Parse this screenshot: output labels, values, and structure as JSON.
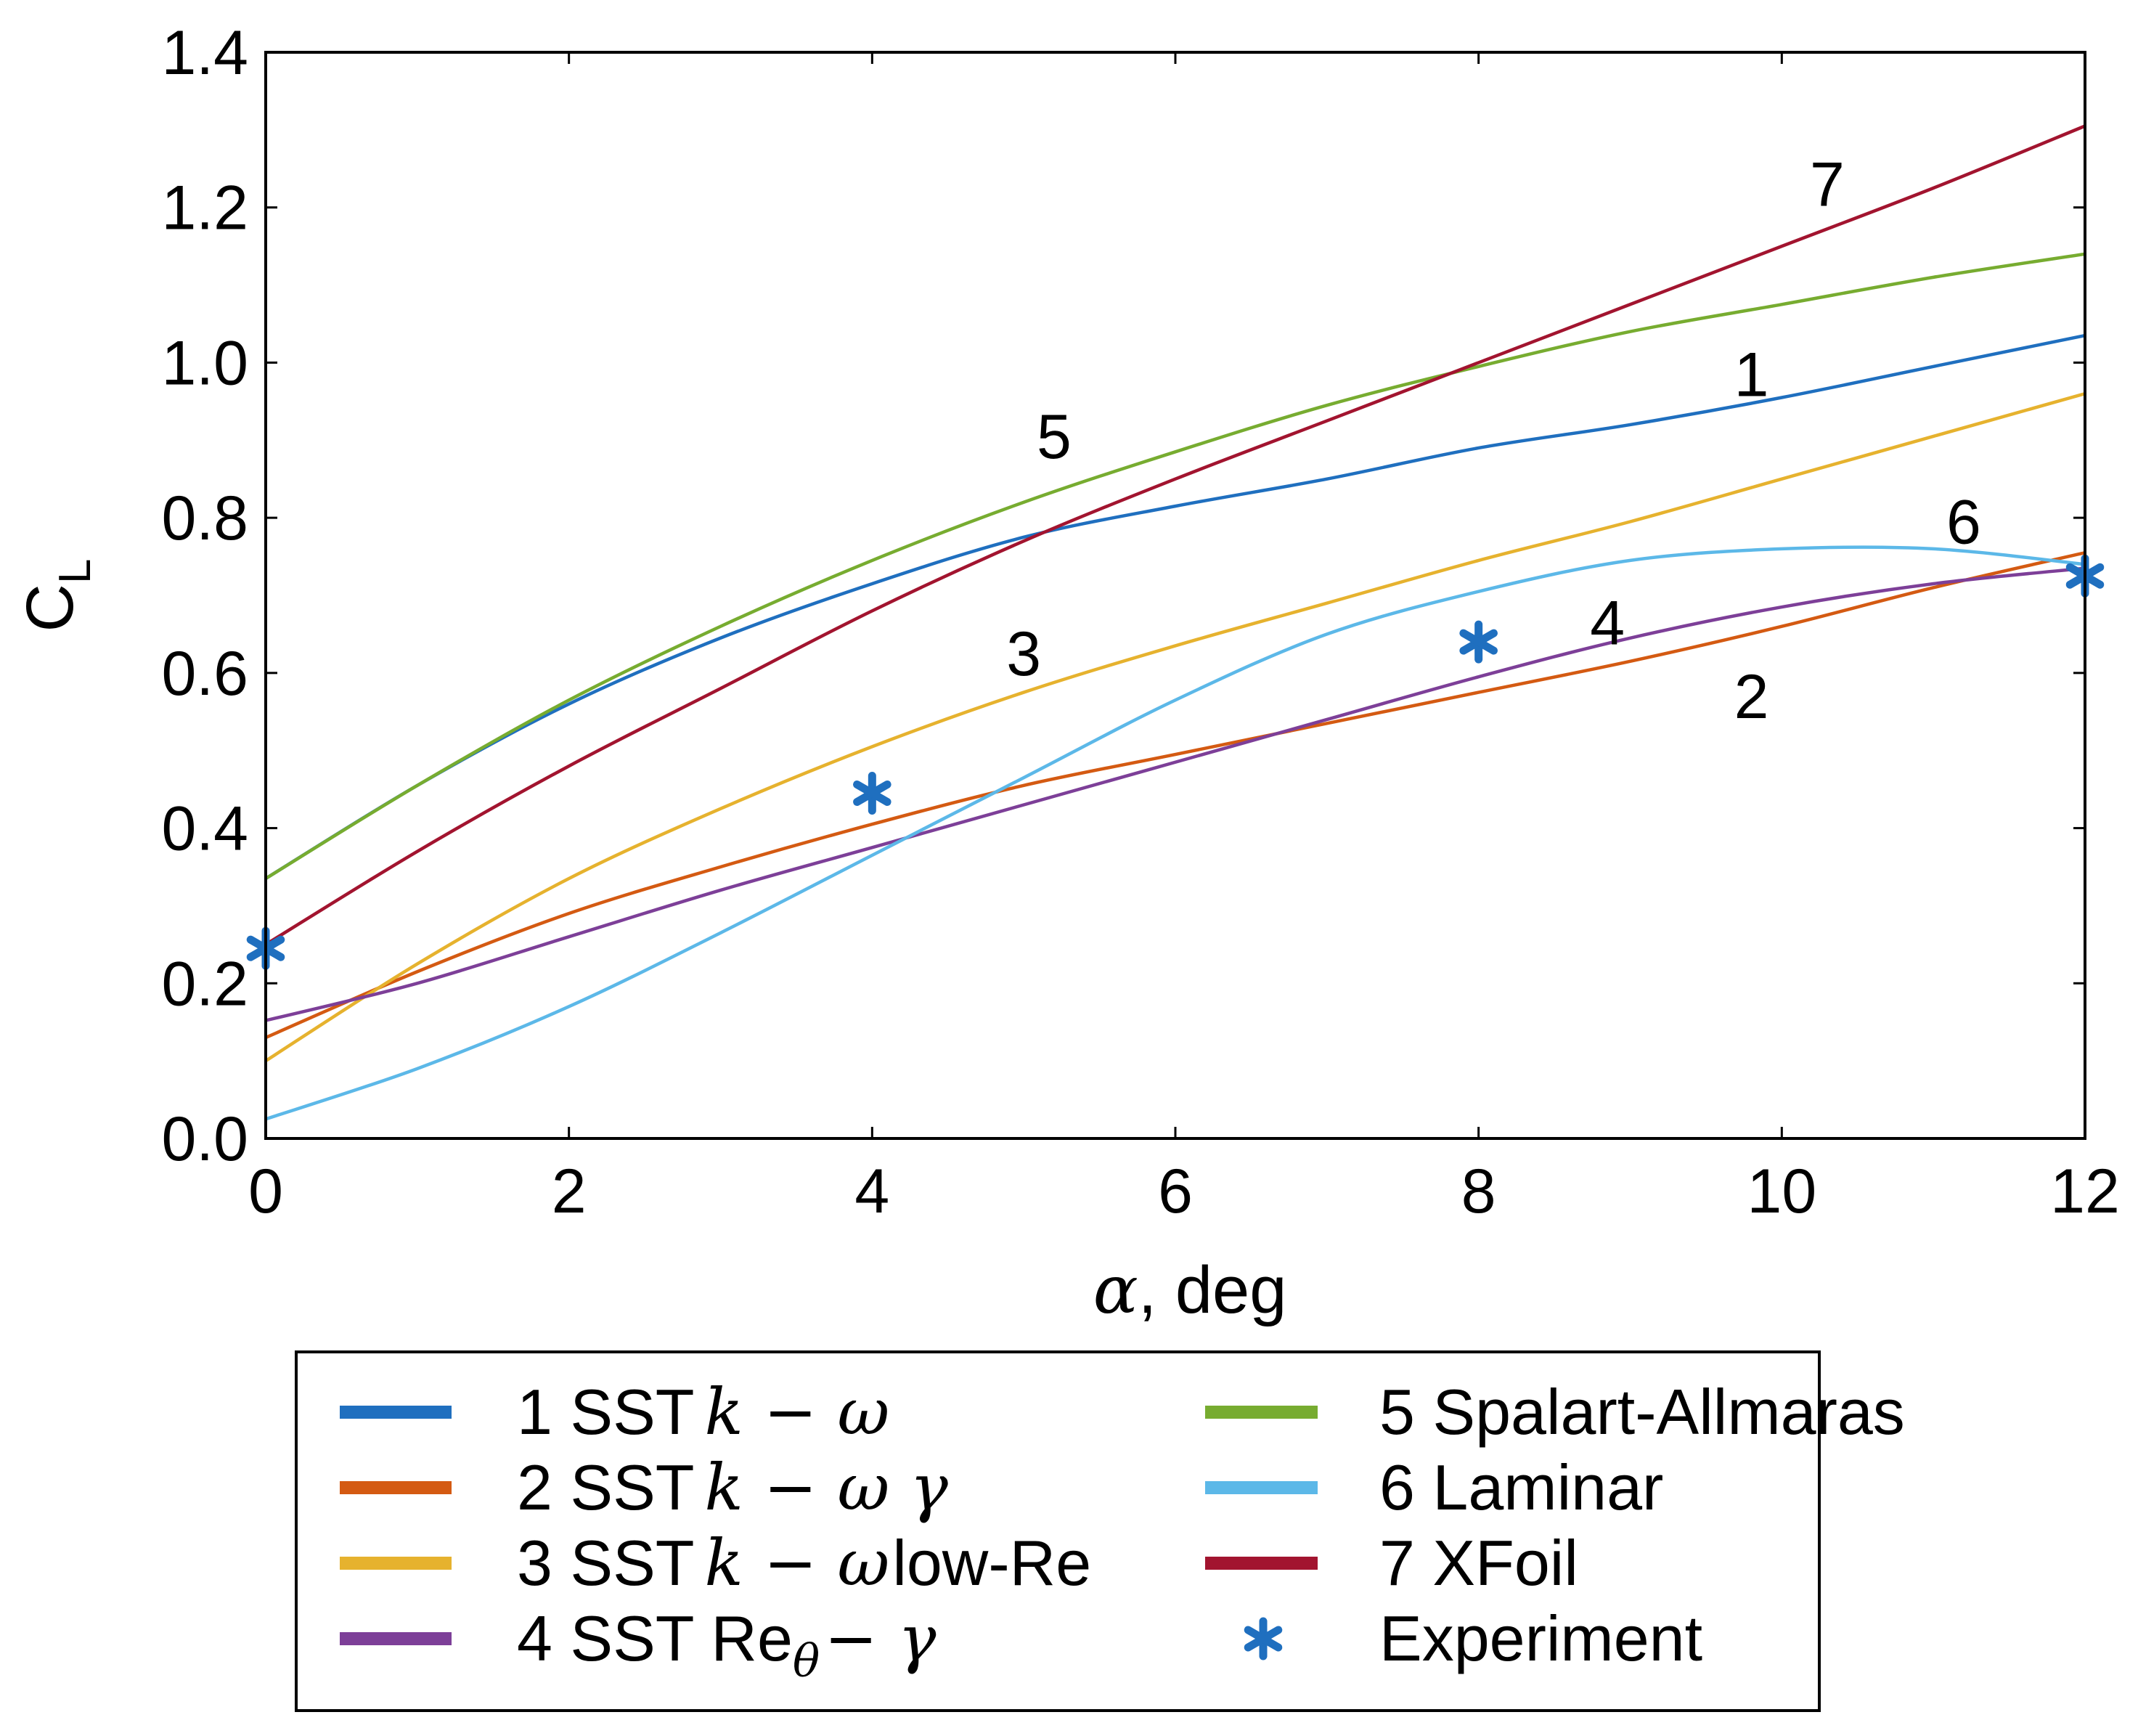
{
  "chart_data": {
    "type": "line",
    "title": "",
    "xlabel": "α, deg",
    "ylabel": "C",
    "ylabel_sub": "L",
    "xlim": [
      0,
      12
    ],
    "ylim": [
      0,
      1.4
    ],
    "xticks": [
      0,
      2,
      4,
      6,
      8,
      10,
      12
    ],
    "yticks": [
      0.0,
      0.2,
      0.4,
      0.6,
      0.8,
      1.0,
      1.2,
      1.4
    ],
    "xtick_labels": [
      "0",
      "2",
      "4",
      "6",
      "8",
      "10",
      "12"
    ],
    "ytick_labels": [
      "0.0",
      "0.2",
      "0.4",
      "0.6",
      "0.8",
      "1.0",
      "1.2",
      "1.4"
    ],
    "grid": false,
    "series": [
      {
        "id": "1",
        "name": "1 SST k − ω",
        "color": "#1f6fbf",
        "x": [
          0,
          1,
          2,
          3,
          4,
          5,
          6,
          7,
          8,
          9,
          10,
          11,
          12
        ],
        "y": [
          0.335,
          0.455,
          0.56,
          0.645,
          0.715,
          0.775,
          0.815,
          0.85,
          0.89,
          0.92,
          0.955,
          0.995,
          1.035
        ]
      },
      {
        "id": "2",
        "name": "2 SST k − ω γ",
        "color": "#d45a12",
        "x": [
          0,
          1,
          2,
          3,
          4,
          5,
          6,
          7,
          8,
          9,
          10,
          11,
          12
        ],
        "y": [
          0.13,
          0.215,
          0.29,
          0.35,
          0.405,
          0.455,
          0.495,
          0.535,
          0.575,
          0.615,
          0.66,
          0.71,
          0.755
        ]
      },
      {
        "id": "3",
        "name": "3 SST k − ω low-Re",
        "color": "#e6b22e",
        "x": [
          0,
          1,
          2,
          3,
          4,
          5,
          6,
          7,
          8,
          9,
          10,
          11,
          12
        ],
        "y": [
          0.1,
          0.225,
          0.335,
          0.425,
          0.505,
          0.575,
          0.635,
          0.69,
          0.745,
          0.795,
          0.85,
          0.905,
          0.96
        ]
      },
      {
        "id": "4",
        "name": "4 SST Reθ− γ",
        "color": "#7d3f98",
        "x": [
          0,
          1,
          2,
          3,
          4,
          5,
          6,
          7,
          8,
          9,
          10,
          11,
          12
        ],
        "y": [
          0.152,
          0.2,
          0.26,
          0.32,
          0.375,
          0.43,
          0.485,
          0.54,
          0.595,
          0.645,
          0.685,
          0.715,
          0.735
        ]
      },
      {
        "id": "5",
        "name": "5 Spalart-Allmaras",
        "color": "#77ac30",
        "x": [
          0,
          1,
          2,
          3,
          4,
          5,
          6,
          7,
          8,
          9,
          10,
          11,
          12
        ],
        "y": [
          0.335,
          0.455,
          0.565,
          0.66,
          0.745,
          0.82,
          0.885,
          0.945,
          0.995,
          1.04,
          1.075,
          1.11,
          1.14
        ]
      },
      {
        "id": "6",
        "name": "6 Laminar",
        "color": "#5cb8e8",
        "x": [
          0,
          1,
          2,
          3,
          4,
          5,
          6,
          7,
          8,
          9,
          10,
          11,
          12
        ],
        "y": [
          0.025,
          0.09,
          0.17,
          0.265,
          0.365,
          0.465,
          0.565,
          0.65,
          0.705,
          0.745,
          0.76,
          0.76,
          0.74
        ]
      },
      {
        "id": "7",
        "name": "7 XFoil",
        "color": "#a2142f",
        "x": [
          0,
          1,
          2,
          3,
          4,
          5,
          6,
          7,
          8,
          9,
          10,
          11,
          12
        ],
        "y": [
          0.25,
          0.37,
          0.48,
          0.58,
          0.68,
          0.77,
          0.85,
          0.925,
          1.0,
          1.075,
          1.15,
          1.225,
          1.305
        ]
      }
    ],
    "experiment": {
      "name": "Experiment",
      "marker": "*",
      "color": "#1f6fbf",
      "x": [
        0,
        4,
        8,
        12
      ],
      "y": [
        0.245,
        0.445,
        0.64,
        0.725
      ]
    },
    "curve_labels": [
      {
        "text": "7",
        "x": 10.3,
        "y": 1.23
      },
      {
        "text": "1",
        "x": 9.8,
        "y": 0.985
      },
      {
        "text": "5",
        "x": 5.2,
        "y": 0.905
      },
      {
        "text": "6",
        "x": 11.2,
        "y": 0.795
      },
      {
        "text": "3",
        "x": 5.0,
        "y": 0.625
      },
      {
        "text": "4",
        "x": 8.85,
        "y": 0.665
      },
      {
        "text": "2",
        "x": 9.8,
        "y": 0.57
      }
    ],
    "legend": {
      "placement": "bottom",
      "columns": 2,
      "left": [
        {
          "series": "1",
          "prefix": "1 SST",
          "math": "k − ω",
          "suffix": ""
        },
        {
          "series": "2",
          "prefix": "2 SST",
          "math": "k − ω γ",
          "suffix": ""
        },
        {
          "series": "3",
          "prefix": "3 SST",
          "math": "k − ω",
          "suffix": "low-Re"
        },
        {
          "series": "4",
          "prefix": "4 SST Re",
          "sub": "θ",
          "math": "− γ",
          "suffix": ""
        }
      ],
      "right": [
        {
          "series": "5",
          "text": "5 Spalart-Allmaras"
        },
        {
          "series": "6",
          "text": "6 Laminar"
        },
        {
          "series": "7",
          "text": "7 XFoil"
        },
        {
          "series": "experiment",
          "text": "Experiment"
        }
      ]
    }
  }
}
